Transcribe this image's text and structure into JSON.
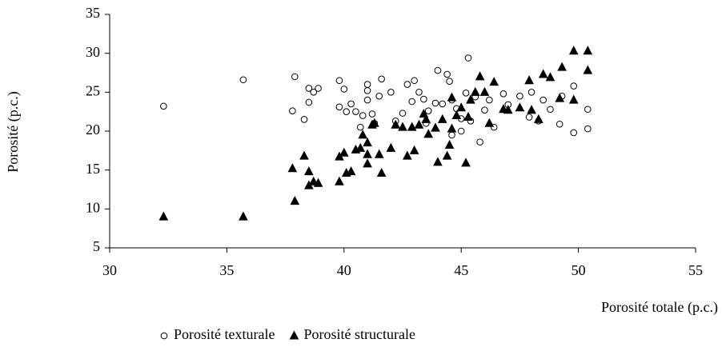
{
  "chart_data": {
    "type": "scatter",
    "x_label": "Porosité totale (p.c.)",
    "y_label": "Porosité (p.c.)",
    "xlim": [
      30,
      55
    ],
    "xticks": [
      30,
      35,
      40,
      45,
      50,
      55
    ],
    "ylim": [
      5,
      35
    ],
    "yticks": [
      5,
      10,
      15,
      20,
      25,
      30,
      35
    ],
    "legend": "bottom",
    "series": [
      {
        "name": "Porosité texturale",
        "marker": "circle",
        "color": "#000000",
        "x": [
          32.3,
          35.7,
          37.8,
          37.9,
          38.3,
          38.5,
          38.5,
          38.7,
          38.9,
          39.8,
          39.8,
          40,
          40.1,
          40.3,
          40.5,
          40.7,
          40.8,
          41,
          41,
          41,
          41.2,
          41.3,
          41.5,
          41.6,
          42,
          42.2,
          42.5,
          42.7,
          43,
          43.2,
          43.4,
          43.6,
          43.9,
          44,
          44.2,
          44.4,
          44.5,
          44.6,
          44.8,
          45,
          45.2,
          45.3,
          45.4,
          45.6,
          45.8,
          46,
          46.2,
          46.4,
          46.8,
          47,
          47.5,
          47.9,
          48,
          48.3,
          48.5,
          48.8,
          49.2,
          49.3,
          49.8,
          49.8,
          50.4,
          50.4,
          45,
          44.6,
          43.5,
          42.9
        ],
        "values": [
          23.2,
          26.6,
          22.6,
          27,
          21.5,
          25.5,
          23.7,
          25,
          25.5,
          26.5,
          23.1,
          25.4,
          22.5,
          23.5,
          22.5,
          20.5,
          22,
          26,
          25.2,
          24,
          22.2,
          21,
          24.5,
          26.7,
          25,
          21.3,
          22.3,
          26,
          26.5,
          25,
          24.1,
          22.6,
          23.6,
          27.8,
          23.5,
          27.3,
          26.4,
          24,
          22.9,
          21.6,
          24.9,
          29.4,
          21.3,
          24.4,
          18.6,
          22.7,
          24,
          20.5,
          24.8,
          23.4,
          24.5,
          21.8,
          25,
          21.3,
          24,
          22.8,
          20.9,
          24.5,
          25.8,
          19.8,
          20.3,
          22.8,
          20,
          19.5,
          21,
          23.8
        ]
      },
      {
        "name": "Porosité structurale",
        "marker": "triangle",
        "color": "#000000",
        "x": [
          32.3,
          35.7,
          37.8,
          37.9,
          38.3,
          38.5,
          38.5,
          38.7,
          38.9,
          39.8,
          39.8,
          40,
          40.1,
          40.3,
          40.5,
          40.7,
          40.8,
          41,
          41,
          41,
          41.2,
          41.3,
          41.5,
          41.6,
          42,
          42.2,
          42.5,
          42.7,
          43,
          43.2,
          43.4,
          43.6,
          43.9,
          44,
          44.2,
          44.4,
          44.5,
          44.6,
          44.8,
          45,
          45.2,
          45.3,
          45.4,
          45.6,
          45.8,
          46,
          46.2,
          46.4,
          46.8,
          47,
          47.5,
          47.9,
          48,
          48.3,
          48.5,
          48.8,
          49.2,
          49.3,
          49.8,
          49.8,
          50.4,
          50.4,
          44.6,
          43.5,
          42.9
        ],
        "values": [
          9,
          9,
          15.2,
          11,
          16.8,
          14.8,
          13,
          13.5,
          13.3,
          13.5,
          16.7,
          17.2,
          14.6,
          14.8,
          17.6,
          17.8,
          19.5,
          18.5,
          17,
          15.8,
          20.8,
          21,
          17,
          14.6,
          17.8,
          20.8,
          20.5,
          16.8,
          17.5,
          20.8,
          22.2,
          19.6,
          20.4,
          16,
          21.5,
          16.8,
          18.2,
          20.3,
          22,
          23,
          15.9,
          21.8,
          24,
          25,
          27,
          25,
          21,
          26.3,
          22.8,
          22.7,
          23,
          26.5,
          22.7,
          21.5,
          27.3,
          26.9,
          24.2,
          28.2,
          30.3,
          24,
          30.3,
          27.8,
          24.3,
          21.5,
          20.5
        ]
      }
    ]
  }
}
